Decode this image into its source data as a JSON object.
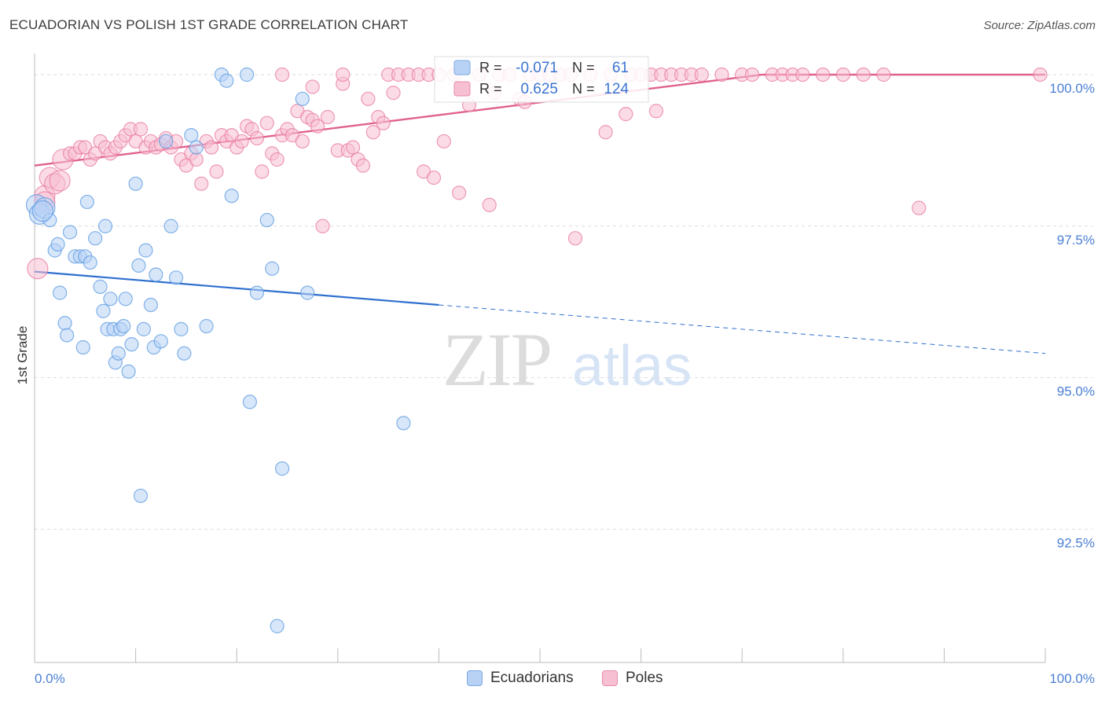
{
  "title": "ECUADORIAN VS POLISH 1ST GRADE CORRELATION CHART",
  "source": "Source: ZipAtlas.com",
  "colors": {
    "blue": "#5b9be0",
    "blue_fill": "#b8d2f5",
    "blue_line": "#2f6fcf",
    "pink": "#e87aa0",
    "pink_fill": "#f7bfd2",
    "pink_line": "#e0608e",
    "tick_label": "#4a7fd4",
    "grid": "#dedede"
  },
  "chart_data": {
    "type": "scatter",
    "title": "ECUADORIAN VS POLISH 1ST GRADE CORRELATION CHART",
    "ylabel": "1st Grade",
    "xlim": [
      0,
      100
    ],
    "ylim": [
      90.3,
      100.35
    ],
    "x_tick_labels": [
      "0.0%",
      "100.0%"
    ],
    "y_ticks": [
      100.0,
      97.5,
      95.0,
      92.5
    ],
    "y_tick_labels": [
      "100.0%",
      "97.5%",
      "95.0%",
      "92.5%"
    ],
    "grid": true,
    "legend_top": {
      "rows": [
        {
          "r_label": "R =",
          "r_value": "-0.071",
          "n_label": "N =",
          "n_value": "61"
        },
        {
          "r_label": "R =",
          "r_value": "0.625",
          "n_label": "N =",
          "n_value": "124"
        }
      ]
    },
    "legend_bottom": [
      "Ecuadorians",
      "Poles"
    ],
    "series": [
      {
        "name": "Ecuadorians",
        "color": "#5b9be0",
        "trend": {
          "x0": 0,
          "y0": 96.75,
          "x1": 40,
          "y1": 96.2,
          "dash_x1": 100,
          "dash_y1": 95.4
        },
        "points": [
          [
            0.2,
            97.85
          ],
          [
            0.5,
            97.7
          ],
          [
            1.0,
            97.8
          ],
          [
            1.5,
            97.6
          ],
          [
            2.0,
            97.1
          ],
          [
            2.3,
            97.2
          ],
          [
            2.5,
            96.4
          ],
          [
            3.0,
            95.9
          ],
          [
            3.2,
            95.7
          ],
          [
            3.5,
            97.4
          ],
          [
            4.0,
            97.0
          ],
          [
            4.5,
            97.0
          ],
          [
            4.8,
            95.5
          ],
          [
            5.0,
            97.0
          ],
          [
            5.2,
            97.9
          ],
          [
            5.5,
            96.9
          ],
          [
            6.0,
            97.3
          ],
          [
            6.5,
            96.5
          ],
          [
            6.8,
            96.1
          ],
          [
            7.0,
            97.5
          ],
          [
            7.2,
            95.8
          ],
          [
            7.5,
            96.3
          ],
          [
            7.8,
            95.8
          ],
          [
            8.0,
            95.25
          ],
          [
            8.3,
            95.4
          ],
          [
            8.5,
            95.8
          ],
          [
            8.8,
            95.85
          ],
          [
            9.0,
            96.3
          ],
          [
            9.3,
            95.1
          ],
          [
            9.6,
            95.55
          ],
          [
            10.0,
            98.2
          ],
          [
            10.3,
            96.85
          ],
          [
            10.5,
            93.05
          ],
          [
            10.8,
            95.8
          ],
          [
            11.0,
            97.1
          ],
          [
            11.5,
            96.2
          ],
          [
            11.8,
            95.5
          ],
          [
            12.0,
            96.7
          ],
          [
            12.5,
            95.6
          ],
          [
            13.0,
            98.9
          ],
          [
            13.5,
            97.5
          ],
          [
            14.0,
            96.65
          ],
          [
            14.5,
            95.8
          ],
          [
            14.8,
            95.4
          ],
          [
            15.5,
            99.0
          ],
          [
            16.0,
            98.8
          ],
          [
            17.0,
            95.85
          ],
          [
            18.5,
            100.0
          ],
          [
            19.0,
            99.9
          ],
          [
            19.5,
            98.0
          ],
          [
            21.0,
            100.0
          ],
          [
            21.3,
            94.6
          ],
          [
            22.0,
            96.4
          ],
          [
            23.0,
            97.6
          ],
          [
            23.5,
            96.8
          ],
          [
            24.0,
            90.9
          ],
          [
            24.5,
            93.5
          ],
          [
            26.5,
            99.6
          ],
          [
            27.0,
            96.4
          ],
          [
            36.5,
            94.25
          ],
          [
            0.8,
            97.75
          ]
        ]
      },
      {
        "name": "Poles",
        "color": "#e87aa0",
        "trend": {
          "x0": 0,
          "y0": 98.5,
          "x1": 72,
          "y1": 100.0
        },
        "points": [
          [
            0.3,
            96.8
          ],
          [
            1.0,
            98.0
          ],
          [
            1.5,
            98.3
          ],
          [
            2.0,
            98.2
          ],
          [
            2.8,
            98.6
          ],
          [
            3.5,
            98.7
          ],
          [
            4.0,
            98.7
          ],
          [
            4.5,
            98.8
          ],
          [
            5.0,
            98.8
          ],
          [
            5.5,
            98.6
          ],
          [
            6.0,
            98.7
          ],
          [
            6.5,
            98.9
          ],
          [
            7.0,
            98.8
          ],
          [
            7.5,
            98.7
          ],
          [
            8.0,
            98.8
          ],
          [
            8.5,
            98.9
          ],
          [
            9.0,
            99.0
          ],
          [
            9.5,
            99.1
          ],
          [
            10.0,
            98.9
          ],
          [
            10.5,
            99.1
          ],
          [
            11.0,
            98.8
          ],
          [
            11.5,
            98.9
          ],
          [
            12.0,
            98.8
          ],
          [
            12.5,
            98.85
          ],
          [
            13.0,
            98.95
          ],
          [
            13.5,
            98.8
          ],
          [
            14.0,
            98.9
          ],
          [
            14.5,
            98.6
          ],
          [
            15.0,
            98.5
          ],
          [
            15.5,
            98.7
          ],
          [
            16.0,
            98.6
          ],
          [
            16.5,
            98.2
          ],
          [
            17.0,
            98.9
          ],
          [
            17.5,
            98.8
          ],
          [
            18.0,
            98.4
          ],
          [
            18.5,
            99.0
          ],
          [
            19.0,
            98.9
          ],
          [
            19.5,
            99.0
          ],
          [
            20.0,
            98.8
          ],
          [
            20.5,
            98.9
          ],
          [
            21.0,
            99.15
          ],
          [
            21.5,
            99.1
          ],
          [
            22.0,
            98.95
          ],
          [
            22.5,
            98.4
          ],
          [
            23.0,
            99.2
          ],
          [
            23.5,
            98.7
          ],
          [
            24.0,
            98.6
          ],
          [
            24.5,
            99.0
          ],
          [
            25.0,
            99.1
          ],
          [
            25.5,
            99.0
          ],
          [
            26.0,
            99.4
          ],
          [
            26.5,
            98.9
          ],
          [
            27.0,
            99.3
          ],
          [
            27.5,
            99.25
          ],
          [
            28.0,
            99.15
          ],
          [
            28.5,
            97.5
          ],
          [
            29.0,
            99.3
          ],
          [
            30.0,
            98.75
          ],
          [
            30.5,
            99.85
          ],
          [
            31.0,
            98.75
          ],
          [
            31.5,
            98.8
          ],
          [
            32.0,
            98.6
          ],
          [
            32.5,
            98.5
          ],
          [
            33.0,
            99.6
          ],
          [
            33.5,
            99.05
          ],
          [
            34.0,
            99.3
          ],
          [
            34.5,
            99.2
          ],
          [
            35.0,
            100.0
          ],
          [
            35.5,
            99.7
          ],
          [
            36.0,
            100.0
          ],
          [
            37.0,
            100.0
          ],
          [
            38.0,
            100.0
          ],
          [
            38.5,
            98.4
          ],
          [
            39.0,
            100.0
          ],
          [
            39.5,
            98.3
          ],
          [
            40.0,
            100.0
          ],
          [
            40.5,
            98.9
          ],
          [
            41.5,
            100.0
          ],
          [
            42.0,
            98.05
          ],
          [
            43.0,
            99.5
          ],
          [
            44.0,
            100.0
          ],
          [
            45.0,
            97.85
          ],
          [
            46.0,
            100.0
          ],
          [
            47.0,
            100.0
          ],
          [
            48.0,
            99.6
          ],
          [
            49.0,
            100.0
          ],
          [
            50.0,
            100.0
          ],
          [
            51.0,
            100.0
          ],
          [
            52.0,
            100.0
          ],
          [
            53.0,
            100.0
          ],
          [
            55.0,
            100.0
          ],
          [
            56.5,
            99.05
          ],
          [
            57.0,
            100.0
          ],
          [
            58.5,
            99.35
          ],
          [
            59.0,
            100.0
          ],
          [
            60.0,
            100.0
          ],
          [
            61.0,
            100.0
          ],
          [
            62.0,
            100.0
          ],
          [
            63.0,
            100.0
          ],
          [
            64.0,
            100.0
          ],
          [
            65.0,
            100.0
          ],
          [
            66.0,
            100.0
          ],
          [
            68.0,
            100.0
          ],
          [
            70.0,
            100.0
          ],
          [
            71.0,
            100.0
          ],
          [
            73.0,
            100.0
          ],
          [
            74.0,
            100.0
          ],
          [
            75.0,
            100.0
          ],
          [
            76.0,
            100.0
          ],
          [
            78.0,
            100.0
          ],
          [
            80.0,
            100.0
          ],
          [
            82.0,
            100.0
          ],
          [
            84.0,
            100.0
          ],
          [
            87.5,
            97.8
          ],
          [
            99.5,
            100.0
          ],
          [
            1.0,
            97.9
          ],
          [
            2.5,
            98.25
          ],
          [
            53.5,
            97.3
          ],
          [
            30.5,
            100.0
          ],
          [
            27.5,
            99.8
          ],
          [
            24.5,
            100.0
          ],
          [
            45.5,
            99.7
          ],
          [
            48.5,
            99.55
          ],
          [
            61.5,
            99.4
          ]
        ]
      }
    ]
  }
}
